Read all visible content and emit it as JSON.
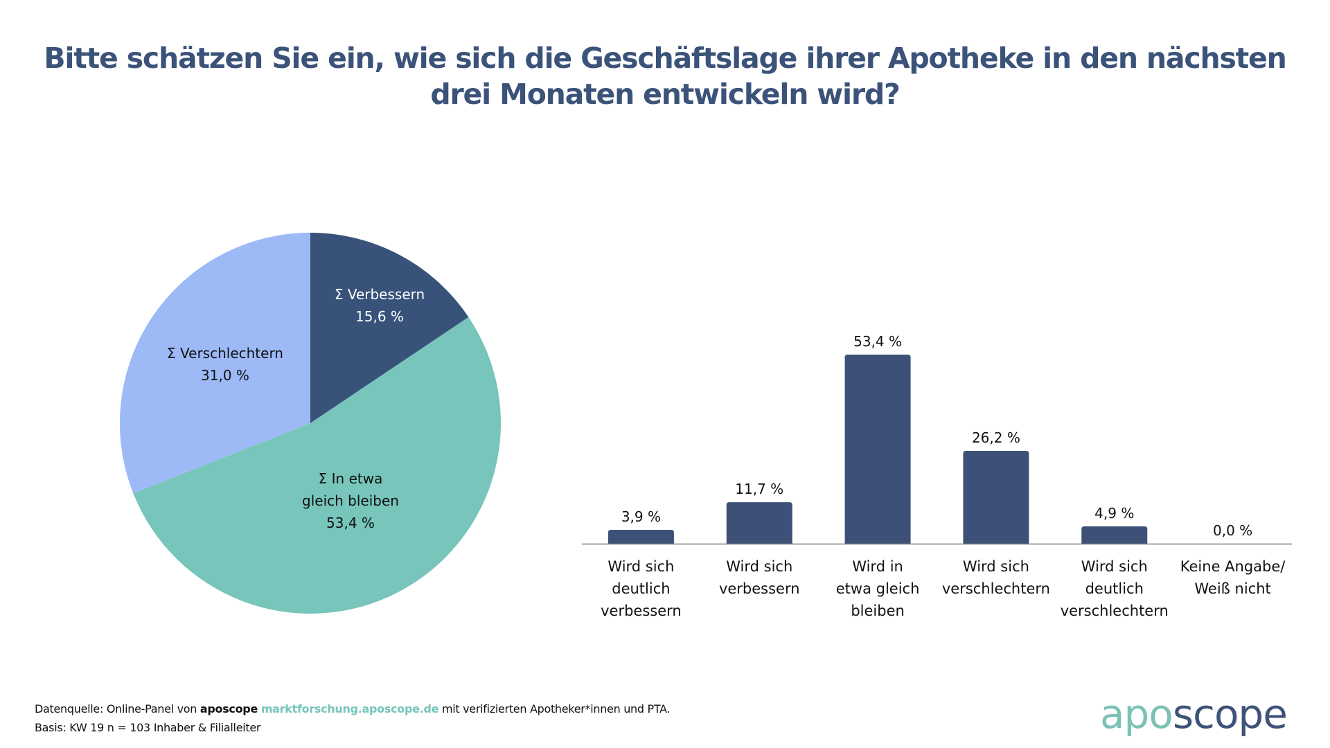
{
  "title": {
    "line1": "Bitte schätzen Sie ein, wie sich die Geschäftslage ihrer Apotheke in den nächsten",
    "line2": "drei Monaten entwickeln wird?"
  },
  "colors": {
    "title": "#3b5279",
    "bar": "#3d5178",
    "pie_verbessern": "#385279",
    "pie_gleich": "#77c5bb",
    "pie_verschlechtern": "#9dbaf7",
    "axis": "#7f7f7f",
    "brand_teal": "#77c5bb",
    "brand_navy": "#3f5379"
  },
  "chart_data": [
    {
      "type": "pie",
      "title": "",
      "slices": [
        {
          "label_lines": [
            "Σ Verbessern",
            "15,6 %"
          ],
          "name": "Σ Verbessern",
          "value": 15.6,
          "color": "#385279",
          "text_color": "#ffffff"
        },
        {
          "label_lines": [
            "Σ In etwa",
            "gleich bleiben",
            "53,4 %"
          ],
          "name": "Σ In etwa gleich bleiben",
          "value": 53.4,
          "color": "#77c5bb",
          "text_color": "#111111"
        },
        {
          "label_lines": [
            "Σ Verschlechtern",
            "31,0 %"
          ],
          "name": "Σ Verschlechtern",
          "value": 31.0,
          "color": "#9dbaf7",
          "text_color": "#111111"
        }
      ],
      "start": "12 o'clock",
      "direction": "clockwise",
      "legend": "none (labels inside slices)"
    },
    {
      "type": "bar",
      "title": "",
      "xlabel": "",
      "ylabel": "",
      "ylim": [
        0,
        60
      ],
      "grid": false,
      "categories": [
        [
          "Wird sich",
          "deutlich",
          "verbessern"
        ],
        [
          "Wird sich",
          "verbessern"
        ],
        [
          "Wird in",
          "etwa gleich",
          "bleiben"
        ],
        [
          "Wird sich",
          "verschlechtern"
        ],
        [
          "Wird sich",
          "deutlich",
          "verschlechtern"
        ],
        [
          "Keine Angabe/",
          "Weiß nicht"
        ]
      ],
      "values": [
        3.9,
        11.7,
        53.4,
        26.2,
        4.9,
        0.0
      ],
      "value_labels": [
        "3,9 %",
        "11,7 %",
        "53,4 %",
        "26,2 %",
        "4,9 %",
        "0,0 %"
      ],
      "color": "#3d5178"
    }
  ],
  "footer": {
    "source_prefix": "Datenquelle: Online-Panel von ",
    "source_brand": "aposcope",
    "source_link": "marktforschung.aposcope.de",
    "source_suffix": " mit verifizierten Apotheker*innen und PTA.",
    "basis": "Basis: KW 19 n = 103 Inhaber & Filialleiter"
  },
  "logo": {
    "part1": "apo",
    "part2": "scope"
  }
}
